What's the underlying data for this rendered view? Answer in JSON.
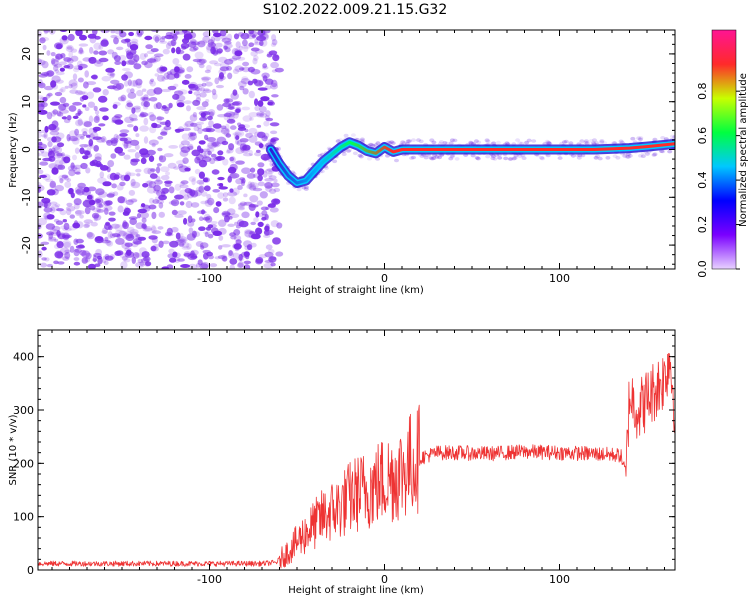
{
  "figure": {
    "title": "S102.2022.009.21.15.G32"
  },
  "chart_data": [
    {
      "type": "heatmap",
      "title": "",
      "xlabel": "Height of straight line (km)",
      "ylabel": "Frequency (Hz)",
      "xlim": [
        -198,
        166
      ],
      "ylim": [
        -25,
        25
      ],
      "x_ticks": [
        -100,
        0,
        100
      ],
      "y_ticks": [
        -20,
        -10,
        0,
        10,
        20
      ],
      "noise_region": {
        "x_range": [
          -198,
          -60
        ],
        "color": "#7a2be8"
      },
      "ridge": {
        "x": [
          -65,
          -60,
          -55,
          -50,
          -45,
          -40,
          -35,
          -30,
          -25,
          -20,
          -15,
          -10,
          -5,
          0,
          5,
          10,
          20,
          40,
          60,
          80,
          100,
          120,
          140,
          150,
          166
        ],
        "y": [
          0,
          -3,
          -5.5,
          -7,
          -6.5,
          -4.5,
          -2.5,
          -1,
          0.5,
          1.5,
          0.8,
          -0.3,
          -0.8,
          0.5,
          -0.5,
          0,
          0,
          0,
          0,
          0,
          0,
          0,
          0.3,
          0.6,
          1.2
        ]
      },
      "colorbar": {
        "label": "Normalized spectral amplitude",
        "range": [
          0,
          1
        ],
        "ticks": [
          "0.0",
          "0.2",
          "0.4",
          "0.6",
          "0.8"
        ],
        "colors": [
          "#e8d2ff",
          "#7a00ff",
          "#0000ff",
          "#00c8ff",
          "#00ff40",
          "#c8ff00",
          "#ff2a2a",
          "#ff1493"
        ]
      }
    },
    {
      "type": "line",
      "title": "",
      "xlabel": "Height of straight line (km)",
      "ylabel": "SNR (10 * v/v)",
      "xlim": [
        -198,
        166
      ],
      "ylim": [
        0,
        450
      ],
      "x_ticks": [
        -100,
        0,
        100
      ],
      "y_ticks": [
        0,
        100,
        200,
        300,
        400
      ],
      "line_color": "#ee3333",
      "series": [
        {
          "x": [
            -198,
            -150,
            -100,
            -70,
            -62,
            -58,
            -52,
            -45,
            -40,
            -35,
            -30,
            -25,
            -20,
            -15,
            -10,
            -5,
            0,
            5,
            10,
            15,
            20,
            25,
            30,
            40,
            60,
            80,
            100,
            120,
            135,
            138,
            140,
            145,
            150,
            155,
            160,
            163,
            166
          ],
          "y": [
            12,
            12,
            12,
            12,
            14,
            25,
            45,
            70,
            85,
            100,
            110,
            120,
            135,
            145,
            150,
            160,
            170,
            175,
            185,
            200,
            210,
            215,
            220,
            220,
            218,
            222,
            220,
            218,
            215,
            180,
            330,
            300,
            320,
            340,
            360,
            400,
            300
          ]
        }
      ]
    }
  ]
}
